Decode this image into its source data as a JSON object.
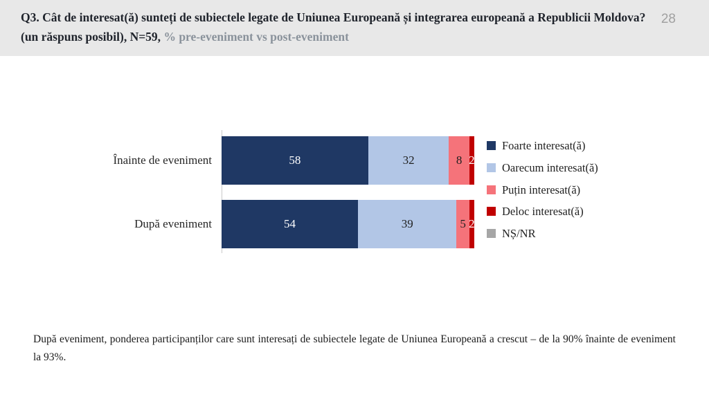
{
  "header": {
    "title_main": "Q3. Cât de interesat(ă) sunteți de subiectele legate de Uniunea Europeană și integrarea europeană a Republicii Moldova? (un răspuns posibil), N=59,",
    "title_sub": " % pre-eveniment vs post-eveniment",
    "page_number": "28"
  },
  "chart_data": {
    "type": "bar",
    "orientation": "horizontal",
    "stacked": true,
    "title": "",
    "categories": [
      "Înainte de eveniment",
      "După eveniment"
    ],
    "series": [
      {
        "name": "Foarte interesat(ă)",
        "color": "#1f3864",
        "text_color": "#ffffff",
        "values": [
          58,
          54
        ]
      },
      {
        "name": "Oarecum interesat(ă)",
        "color": "#b2c6e6",
        "text_color": "#1f1f1f",
        "values": [
          32,
          39
        ]
      },
      {
        "name": "Puțin interesat(ă)",
        "color": "#f5737a",
        "text_color": "#1f1f1f",
        "values": [
          8,
          5
        ]
      },
      {
        "name": "Deloc interesat(ă)",
        "color": "#c00000",
        "text_color": "#ffffff",
        "values": [
          2,
          2
        ]
      },
      {
        "name": "NȘ/NR",
        "color": "#a6a6a6",
        "text_color": "#ffffff",
        "values": [
          0,
          0
        ]
      }
    ],
    "xlim": [
      0,
      100
    ],
    "grid": false,
    "legend_position": "right"
  },
  "footer": {
    "text": "După eveniment, ponderea participanților care sunt interesați de subiectele legate de Uniunea Europeană a crescut – de la 90% înainte de eveniment la 93%."
  }
}
